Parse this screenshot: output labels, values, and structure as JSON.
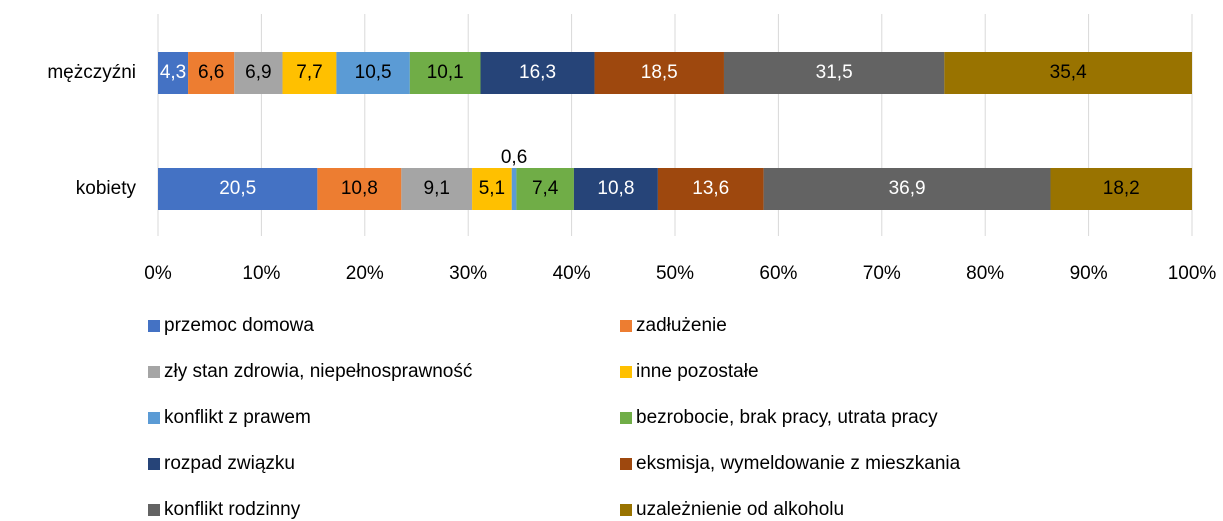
{
  "chart_data": {
    "type": "stacked_barh",
    "stack": "percent",
    "categories": [
      "mężczyźni",
      "kobiety"
    ],
    "xlim": [
      0,
      100
    ],
    "xticks": [
      {
        "value": 0,
        "label": "0%"
      },
      {
        "value": 10,
        "label": "10%"
      },
      {
        "value": 20,
        "label": "20%"
      },
      {
        "value": 30,
        "label": "30%"
      },
      {
        "value": 40,
        "label": "40%"
      },
      {
        "value": 50,
        "label": "50%"
      },
      {
        "value": 60,
        "label": "60%"
      },
      {
        "value": 70,
        "label": "70%"
      },
      {
        "value": 80,
        "label": "80%"
      },
      {
        "value": 90,
        "label": "90%"
      },
      {
        "value": 100,
        "label": "100%"
      }
    ],
    "grid": true,
    "legend": "bottom",
    "series": [
      {
        "name": "przemoc domowa",
        "color": "#4472c4",
        "values": [
          4.3,
          20.5
        ],
        "value_labels": [
          "4,3",
          "20,5"
        ]
      },
      {
        "name": "zadłużenie",
        "color": "#ed7d31",
        "values": [
          6.6,
          10.8
        ],
        "value_labels": [
          "6,6",
          "10,8"
        ]
      },
      {
        "name": "zły stan zdrowia, niepełnosprawność",
        "color": "#a5a5a5",
        "values": [
          6.9,
          9.1
        ],
        "value_labels": [
          "6,9",
          "9,1"
        ]
      },
      {
        "name": "inne pozostałe",
        "color": "#ffc000",
        "values": [
          7.7,
          5.1
        ],
        "value_labels": [
          "7,7",
          "5,1"
        ]
      },
      {
        "name": "konflikt z prawem",
        "color": "#5b9bd5",
        "values": [
          10.5,
          0.6
        ],
        "value_labels": [
          "10,5",
          "0,6"
        ]
      },
      {
        "name": "bezrobocie, brak pracy, utrata pracy",
        "color": "#70ad47",
        "values": [
          10.1,
          7.4
        ],
        "value_labels": [
          "10,1",
          "7,4"
        ]
      },
      {
        "name": "rozpad związku",
        "color": "#264478",
        "values": [
          16.3,
          10.8
        ],
        "value_labels": [
          "16,3",
          "10,8"
        ]
      },
      {
        "name": "eksmisja, wymeldowanie z mieszkania",
        "color": "#9e480e",
        "values": [
          18.5,
          13.6
        ],
        "value_labels": [
          "18,5",
          "13,6"
        ]
      },
      {
        "name": "konflikt rodzinny",
        "color": "#636363",
        "values": [
          31.5,
          36.9
        ],
        "value_labels": [
          "31,5",
          "36,9"
        ]
      },
      {
        "name": "uzależnienie od alkoholu",
        "color": "#997300",
        "values": [
          35.4,
          18.2
        ],
        "value_labels": [
          "35,4",
          "18,2"
        ]
      }
    ]
  }
}
